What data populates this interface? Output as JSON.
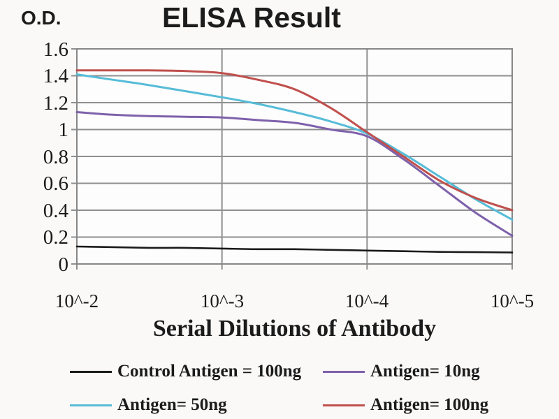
{
  "title": "ELISA Result",
  "y_axis": {
    "label": "O.D.",
    "ticks": [
      "1.6",
      "1.4",
      "1.2",
      "1",
      "0.8",
      "0.6",
      "0.4",
      "0.2",
      "0"
    ]
  },
  "x_axis": {
    "label": "Serial Dilutions of Antibody",
    "ticks": [
      "10^-2",
      "10^-3",
      "10^-4",
      "10^-5"
    ],
    "tick_values": [
      -2,
      -3,
      -4,
      -5
    ]
  },
  "legend": [
    {
      "label": "Control Antigen = 100ng",
      "color": "#1a1a1a"
    },
    {
      "label": "Antigen= 10ng",
      "color": "#7e61ab"
    },
    {
      "label": "Antigen= 50ng",
      "color": "#56bcd8"
    },
    {
      "label": "Antigen= 100ng",
      "color": "#c0504d"
    }
  ],
  "chart_data": {
    "type": "line",
    "title": "ELISA Result",
    "xlabel": "Serial Dilutions of Antibody",
    "ylabel": "O.D.",
    "x_unit": "log10 of dilution",
    "x": [
      -2,
      -2.25,
      -2.5,
      -2.75,
      -3,
      -3.25,
      -3.5,
      -3.75,
      -4,
      -4.25,
      -4.5,
      -4.75,
      -5
    ],
    "series": [
      {
        "name": "Control Antigen = 100ng",
        "color": "#1a1a1a",
        "values": [
          0.13,
          0.125,
          0.12,
          0.12,
          0.115,
          0.11,
          0.11,
          0.105,
          0.1,
          0.095,
          0.09,
          0.088,
          0.085
        ]
      },
      {
        "name": "Antigen= 10ng",
        "color": "#7e61ab",
        "values": [
          1.13,
          1.11,
          1.1,
          1.095,
          1.09,
          1.07,
          1.05,
          1.0,
          0.95,
          0.78,
          0.58,
          0.38,
          0.21
        ]
      },
      {
        "name": "Antigen= 50ng",
        "color": "#56bcd8",
        "values": [
          1.41,
          1.37,
          1.33,
          1.285,
          1.24,
          1.19,
          1.13,
          1.06,
          0.97,
          0.82,
          0.65,
          0.48,
          0.33
        ]
      },
      {
        "name": "Antigen= 100ng",
        "color": "#c0504d",
        "values": [
          1.44,
          1.44,
          1.44,
          1.435,
          1.42,
          1.37,
          1.3,
          1.16,
          0.98,
          0.8,
          0.62,
          0.49,
          0.4
        ]
      }
    ],
    "ylim": [
      0,
      1.6
    ],
    "y_tick_step": 0.2,
    "grid": true,
    "legend_position": "bottom",
    "gridline_color": "#8f8f8f",
    "plot_background": "#fdfdfd"
  }
}
